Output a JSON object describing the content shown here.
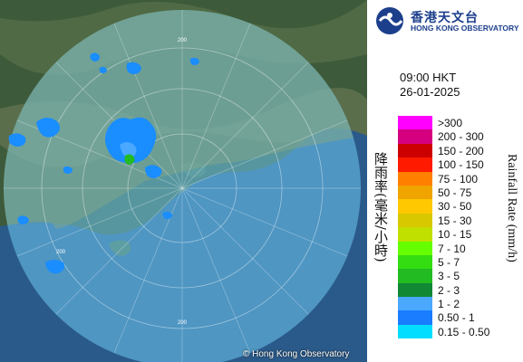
{
  "header": {
    "logo_cn": "香港天文台",
    "logo_en": "HONG KONG OBSERVATORY",
    "time": "09:00 HKT",
    "date": "26-01-2025"
  },
  "map": {
    "copyright": "© Hong Kong Observatory",
    "range_ring_label": "200"
  },
  "legend": {
    "axis_label_cn": "降雨率(毫米/小時)",
    "axis_label_en": "Rainfall Rate (mm/h)",
    "items": [
      {
        "label": ">300",
        "color": "#ff00ff"
      },
      {
        "label": "200 - 300",
        "color": "#d4007f"
      },
      {
        "label": "150 - 200",
        "color": "#cc0000"
      },
      {
        "label": "100 - 150",
        "color": "#ff1a00"
      },
      {
        "label": "75 - 100",
        "color": "#ff7f00"
      },
      {
        "label": "50 - 75",
        "color": "#f0a400"
      },
      {
        "label": "30 - 50",
        "color": "#ffc800"
      },
      {
        "label": "15 - 30",
        "color": "#d8c800"
      },
      {
        "label": "10 - 15",
        "color": "#c0e000"
      },
      {
        "label": "7 - 10",
        "color": "#66ff00"
      },
      {
        "label": "5 - 7",
        "color": "#33dd11"
      },
      {
        "label": "3 - 5",
        "color": "#22bb22"
      },
      {
        "label": "2 - 3",
        "color": "#118833"
      },
      {
        "label": "1 - 2",
        "color": "#4aa8ff"
      },
      {
        "label": "0.50 - 1",
        "color": "#1a7dff"
      },
      {
        "label": "0.15 - 0.50",
        "color": "#00ddff"
      }
    ]
  }
}
